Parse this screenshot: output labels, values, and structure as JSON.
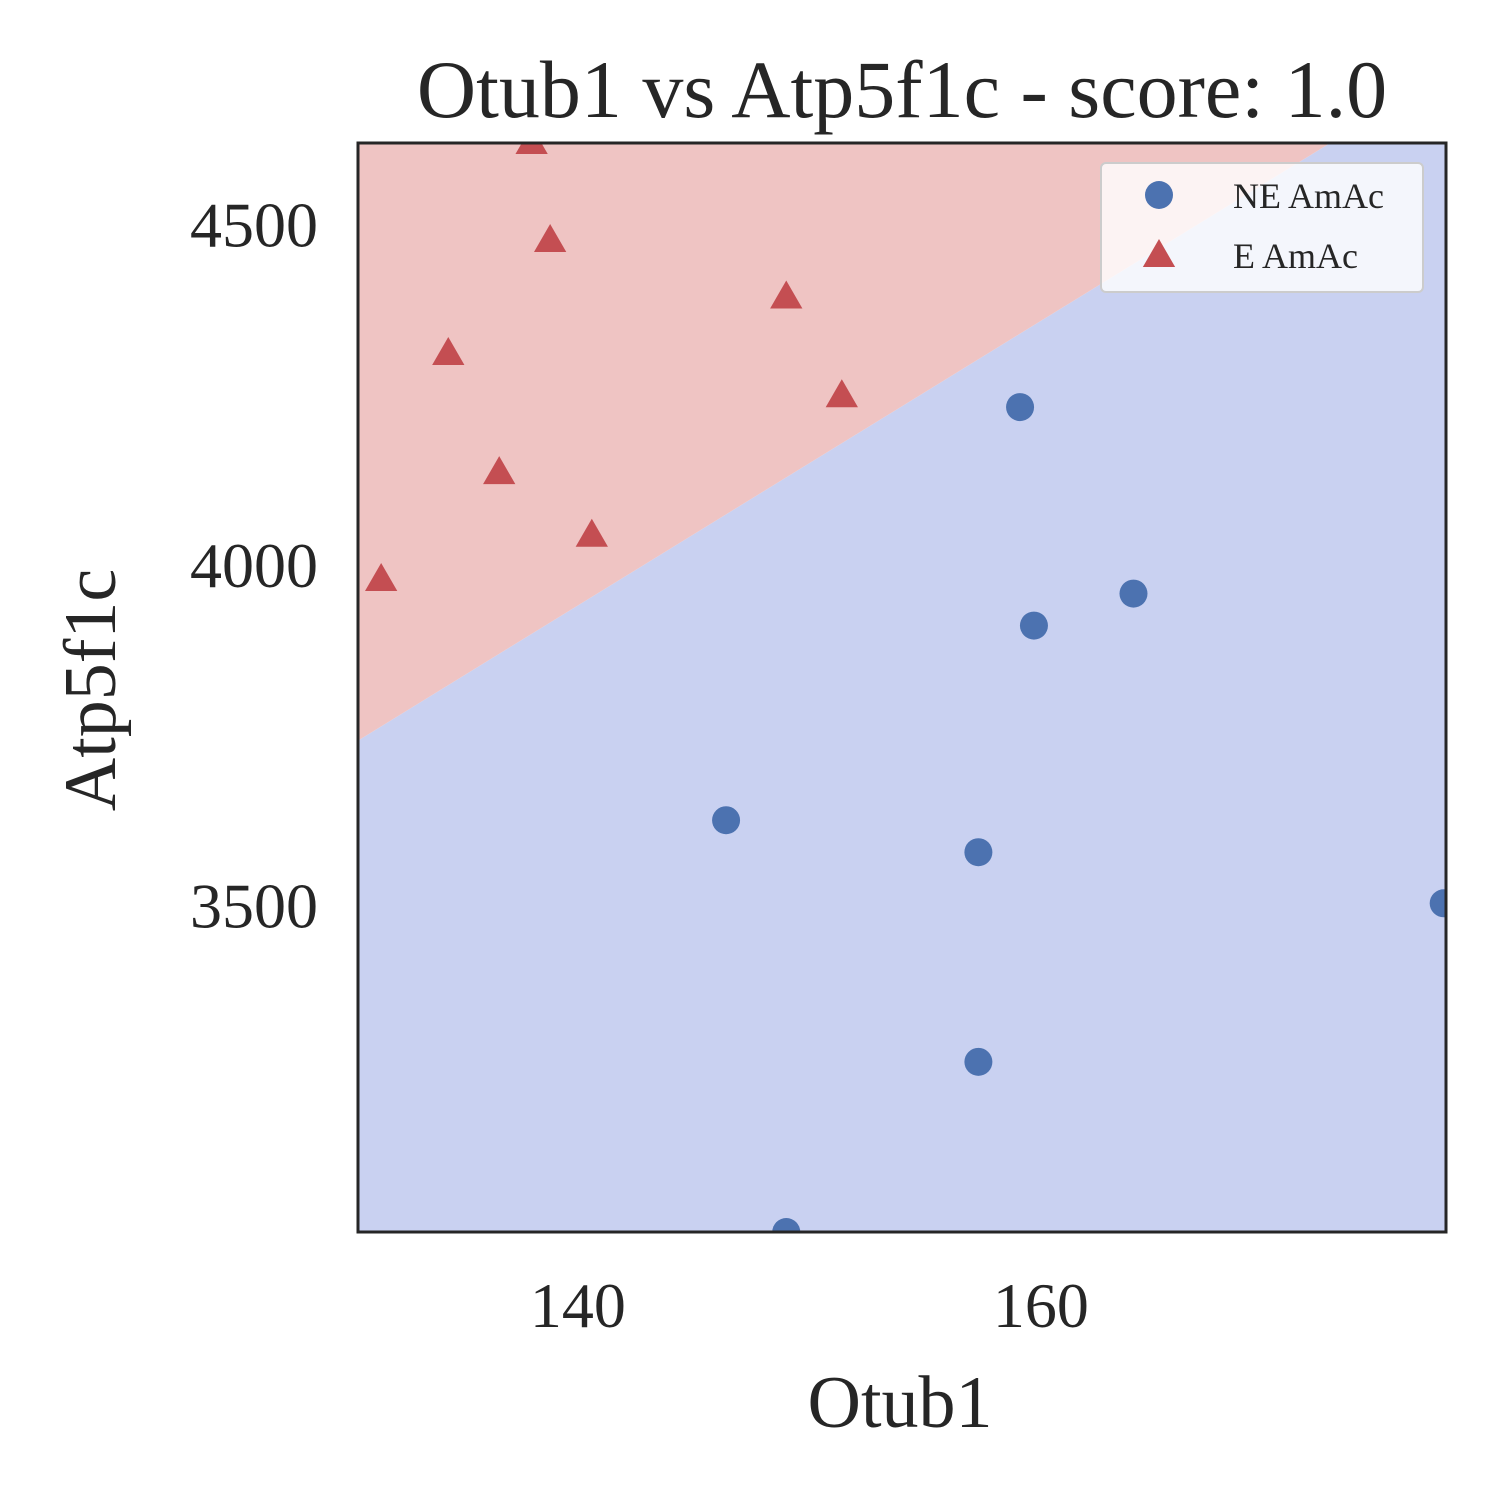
{
  "chart_data": {
    "type": "scatter",
    "title": "Otub1 vs Atp5f1c - score: 1.0",
    "xlabel": "Otub1",
    "ylabel": "Atp5f1c",
    "xlim": [
      130.5,
      177.5
    ],
    "ylim": [
      3020,
      4620
    ],
    "xticks": [
      140,
      160
    ],
    "yticks": [
      3500,
      4000,
      4500
    ],
    "grid": false,
    "legend_position": "top-right",
    "decision_boundary": {
      "points": [
        [
          130.5,
          3742
        ],
        [
          172.5,
          4620
        ]
      ],
      "upper_region_class": "E AmAc",
      "lower_region_class": "NE AmAc",
      "upper_color": "#efc4c3",
      "lower_color": "#c9d1f1"
    },
    "series": [
      {
        "name": "NE AmAc",
        "marker": "circle",
        "color": "#4c72b0",
        "points": [
          [
            146.4,
            3625
          ],
          [
            157.3,
            3578
          ],
          [
            157.3,
            3270
          ],
          [
            159.1,
            4232
          ],
          [
            159.7,
            3911
          ],
          [
            164.0,
            3958
          ],
          [
            177.4,
            3503
          ],
          [
            149.0,
            3020
          ]
        ]
      },
      {
        "name": "E AmAc",
        "marker": "triangle",
        "color": "#c44e52",
        "points": [
          [
            131.5,
            3978
          ],
          [
            134.4,
            4310
          ],
          [
            136.6,
            4135
          ],
          [
            138.0,
            4620
          ],
          [
            138.8,
            4476
          ],
          [
            140.6,
            4043
          ],
          [
            149.0,
            4393
          ],
          [
            151.4,
            4248
          ]
        ]
      }
    ]
  }
}
